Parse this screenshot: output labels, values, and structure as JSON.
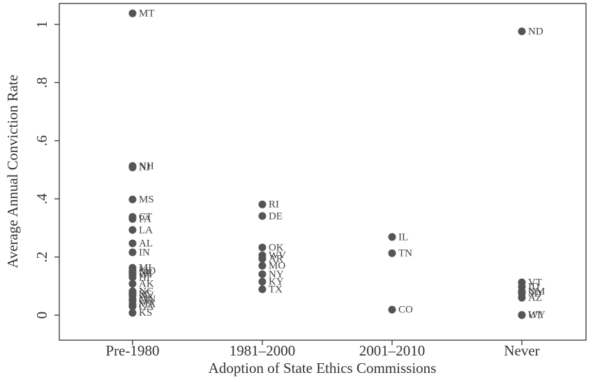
{
  "chart_data": {
    "type": "scatter",
    "x_label": "Adoption of State Ethics Commissions",
    "y_label": "Average Annual Conviction Rate",
    "categories": [
      "Pre-1980",
      "1981–2000",
      "2001–2010",
      "Never"
    ],
    "labels": [
      [
        "MT",
        "NH",
        "NJ",
        "MS",
        "CT",
        "PA",
        "LA",
        "AL",
        "IN",
        "MI",
        "MD",
        "NE",
        "WI",
        "HI",
        "AK",
        "NC",
        "SC",
        "NV",
        "MN",
        "OR",
        "MA",
        "GA",
        "KS"
      ],
      [
        "RI",
        "DE",
        "OK",
        "WV",
        "AR",
        "MO",
        "NY",
        "KY",
        "TX"
      ],
      [
        "IL",
        "TN",
        "CO"
      ],
      [
        "ND",
        "VT",
        "ID",
        "NM",
        "SD",
        "AZ",
        "WY",
        "UT"
      ]
    ],
    "values": [
      [
        1.038,
        0.513,
        0.508,
        0.398,
        0.338,
        0.331,
        0.293,
        0.247,
        0.216,
        0.163,
        0.153,
        0.147,
        0.14,
        0.13,
        0.108,
        0.082,
        0.075,
        0.068,
        0.055,
        0.05,
        0.038,
        0.03,
        0.008
      ],
      [
        0.381,
        0.341,
        0.233,
        0.206,
        0.194,
        0.17,
        0.141,
        0.115,
        0.089
      ],
      [
        0.269,
        0.213,
        0.019
      ],
      [
        0.976,
        0.113,
        0.098,
        0.082,
        0.074,
        0.06,
        0.001,
        0
      ]
    ],
    "color": "#555555",
    "ylim": [
      -0.086,
      1.072
    ],
    "yticks": [
      0,
      {
        "value": 0.2,
        "label": ".2"
      },
      {
        "value": 0.4,
        "label": ".4"
      },
      {
        "value": 0.6,
        "label": ".6"
      },
      {
        "value": 0.8,
        "label": ".8"
      },
      1
    ]
  }
}
